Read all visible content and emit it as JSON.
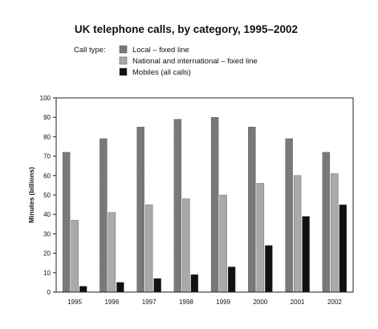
{
  "chart_data": {
    "type": "bar",
    "title": "UK telephone calls, by category, 1995–2002",
    "legend_title": "Call type:",
    "legend_position": "top-left",
    "xlabel": "",
    "ylabel": "Minutes (billions)",
    "ylim": [
      0,
      100
    ],
    "yticks": [
      0,
      10,
      20,
      30,
      40,
      50,
      60,
      70,
      80,
      90,
      100
    ],
    "grid": false,
    "categories": [
      "1995",
      "1996",
      "1997",
      "1998",
      "1999",
      "2000",
      "2001",
      "2002"
    ],
    "series": [
      {
        "name": "Local – fixed line",
        "color": "#8a8a8a",
        "pattern": "dotted",
        "values": [
          72,
          79,
          85,
          89,
          90,
          85,
          79,
          72
        ]
      },
      {
        "name": "National and international – fixed line",
        "color": "#a9a9a9",
        "pattern": "solid",
        "values": [
          37,
          41,
          45,
          48,
          50,
          56,
          60,
          61
        ]
      },
      {
        "name": "Mobiles (all calls)",
        "color": "#111111",
        "pattern": "solid",
        "values": [
          3,
          5,
          7,
          9,
          13,
          24,
          39,
          45
        ]
      }
    ]
  }
}
